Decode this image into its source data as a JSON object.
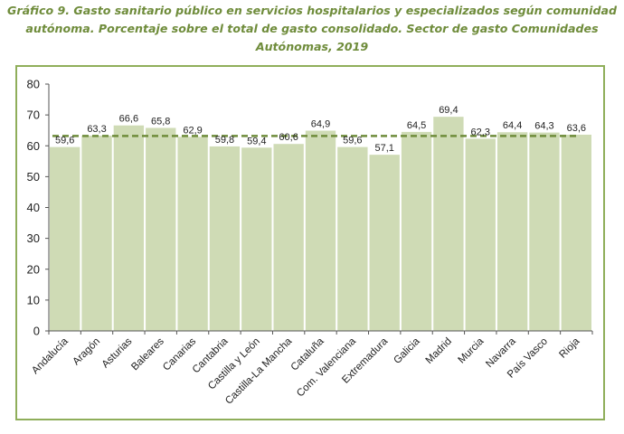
{
  "title_lines": [
    "Gráfico 9. Gasto sanitario público en servicios hospitalarios y especializados según comunidad",
    "autónoma. Porcentaje sobre el total de gasto consolidado. Sector de gasto Comunidades",
    "Autónomas, 2019"
  ],
  "colors": {
    "bar": "#cfdbb5",
    "reference_line": "#6f8c3b",
    "title": "#6f8c3b",
    "frame": "#8fae5a"
  },
  "chart_data": {
    "type": "bar",
    "categories": [
      "Andalucía",
      "Aragón",
      "Asturias",
      "Baleares",
      "Canarias",
      "Cantabria",
      "Castilla y León",
      "Castilla-La Mancha",
      "Cataluña",
      "Com. Valenciana",
      "Extremadura",
      "Galicia",
      "Madrid",
      "Murcia",
      "Navarra",
      "País Vasco",
      "Rioja"
    ],
    "values": [
      59.6,
      63.3,
      66.6,
      65.8,
      62.9,
      59.8,
      59.4,
      60.6,
      64.9,
      59.6,
      57.1,
      64.5,
      69.4,
      62.3,
      64.4,
      64.3,
      63.6
    ],
    "value_labels": [
      "59,6",
      "63,3",
      "66,6",
      "65,8",
      "62,9",
      "59,8",
      "59,4",
      "60,6",
      "64,9",
      "59,6",
      "57,1",
      "64,5",
      "69,4",
      "62,3",
      "64,4",
      "64,3",
      "63,6"
    ],
    "reference_line": {
      "value": 63.2,
      "style": "dashed"
    },
    "ylim": [
      0,
      80
    ],
    "yticks": [
      0,
      10,
      20,
      30,
      40,
      50,
      60,
      70,
      80
    ],
    "grid": false,
    "legend": "none"
  }
}
